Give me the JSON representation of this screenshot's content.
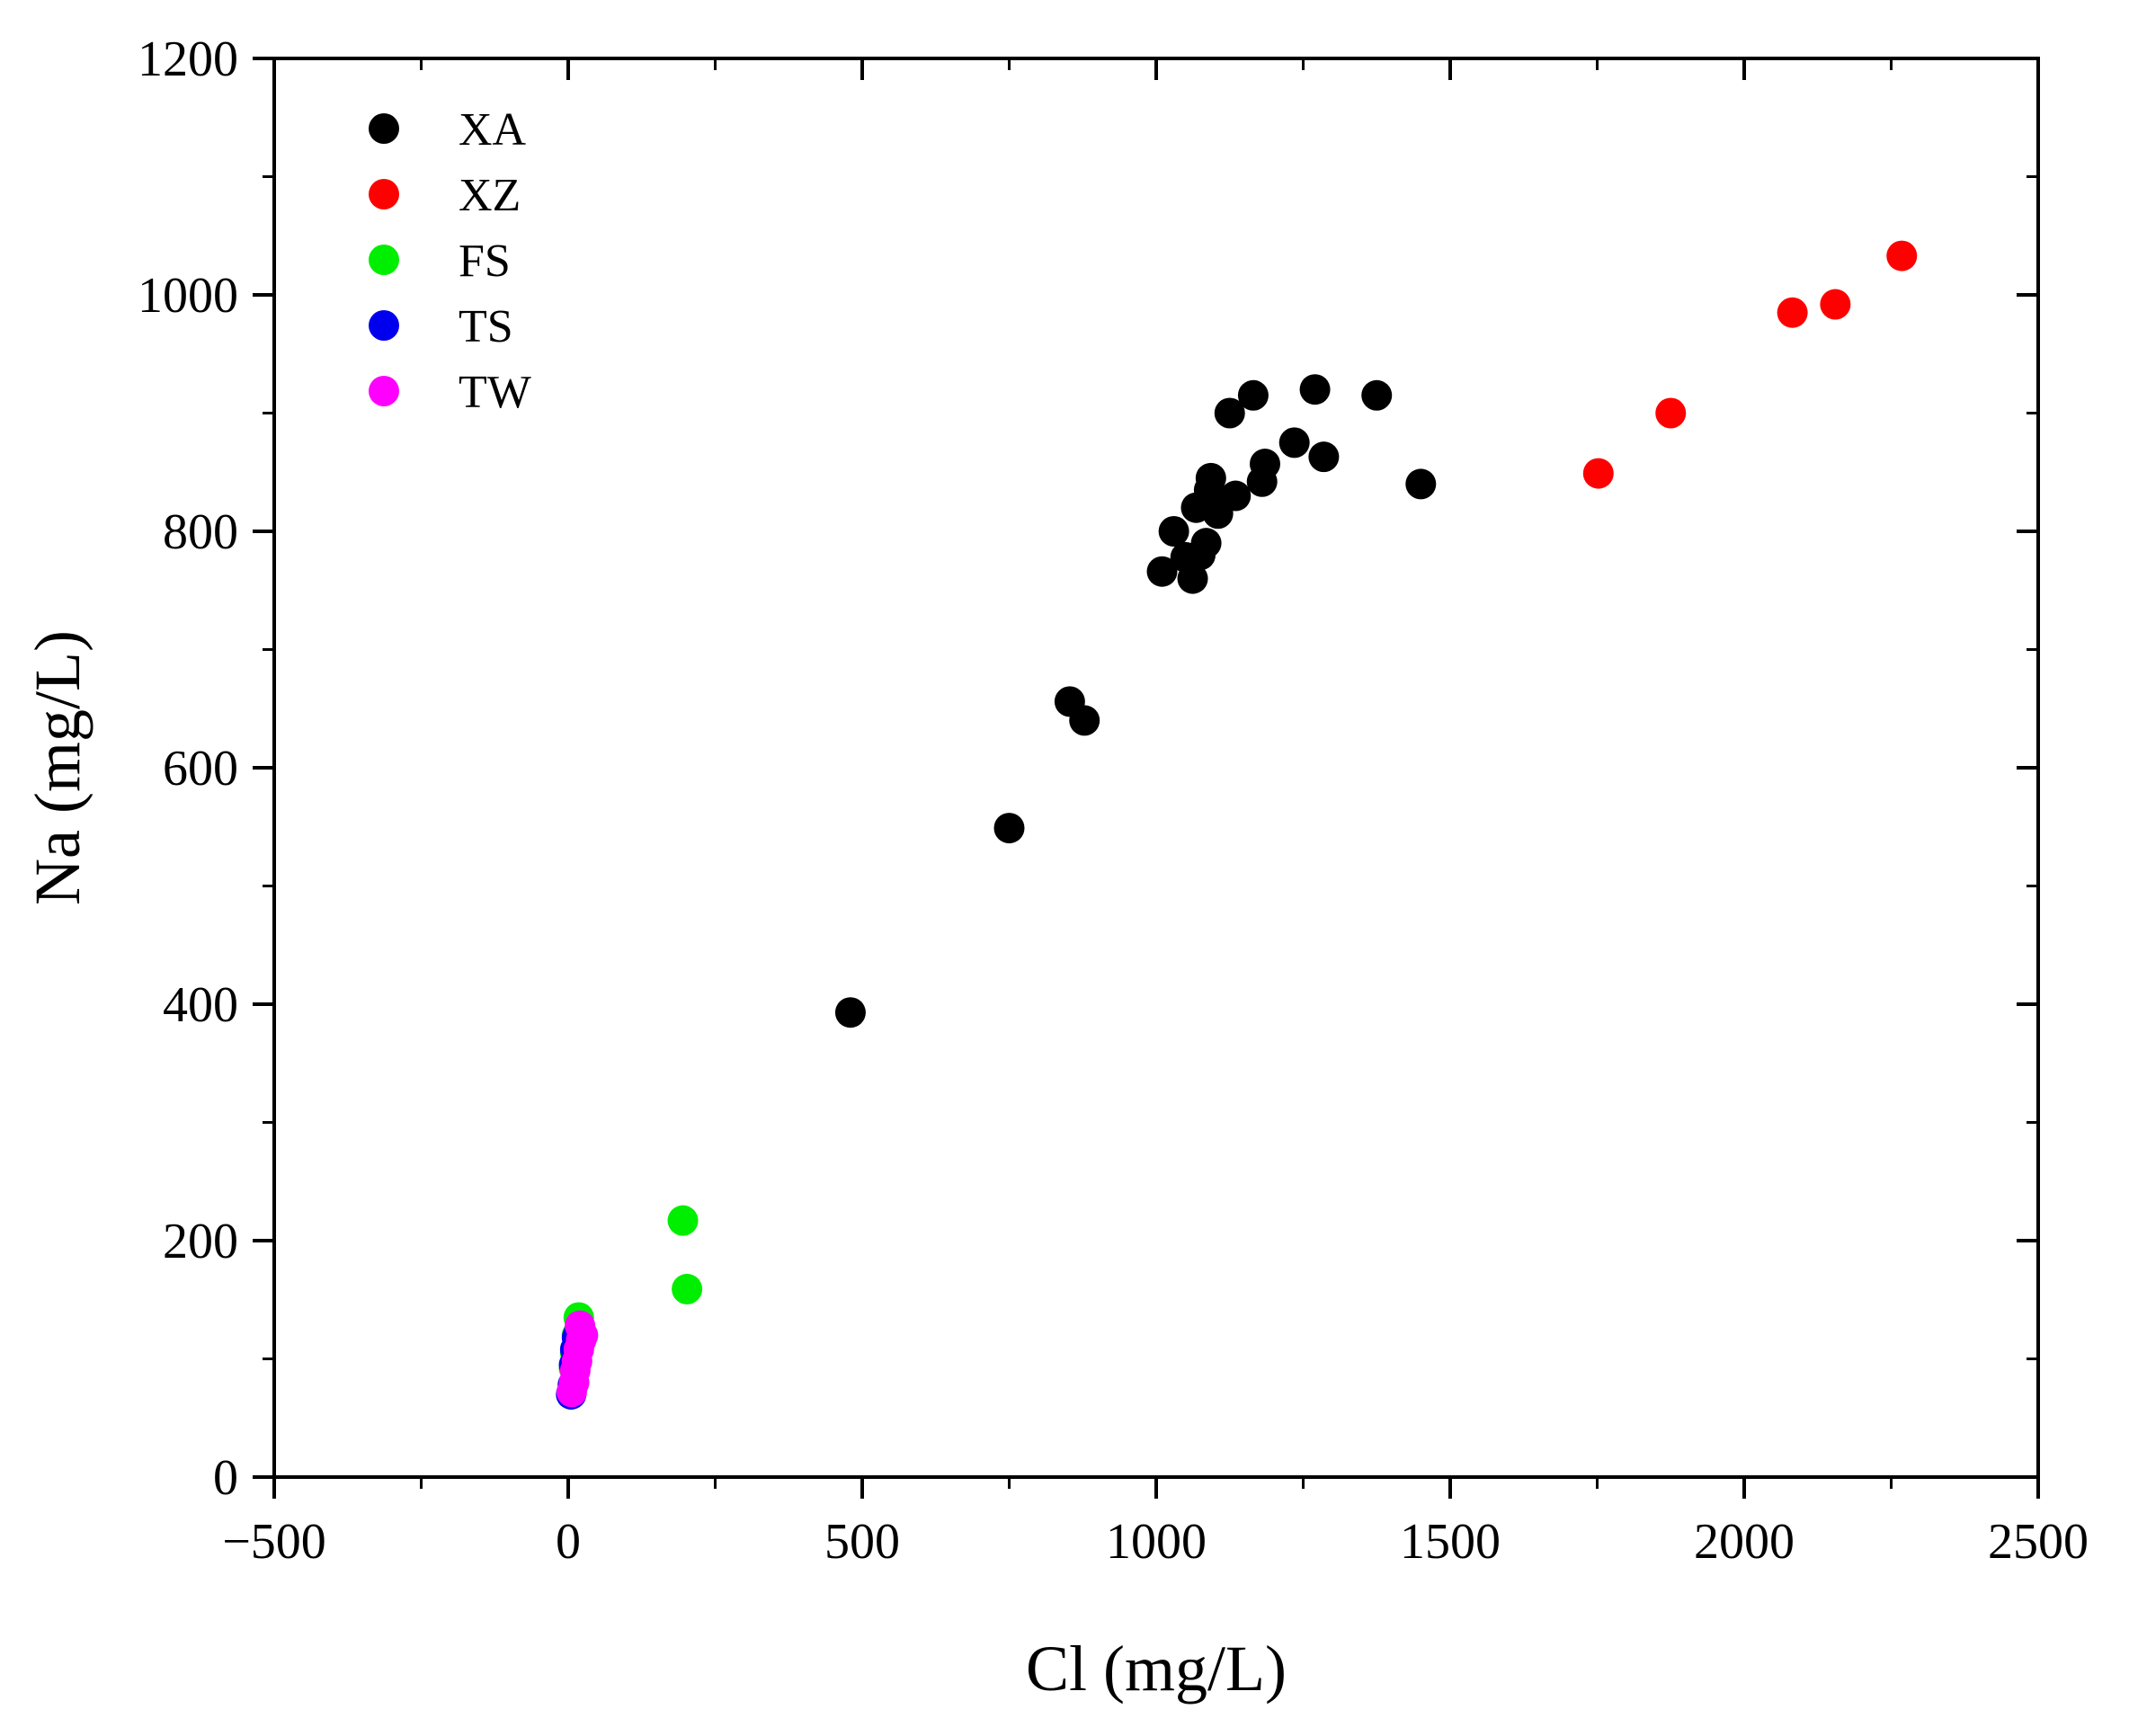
{
  "chart_data": {
    "type": "scatter",
    "title": "",
    "xlabel": "Cl (mg/L)",
    "ylabel": "Na (mg/L)",
    "xlim": [
      -500,
      2500
    ],
    "ylim": [
      0,
      1200
    ],
    "xticks": [
      -500,
      0,
      500,
      1000,
      1500,
      2000,
      2500
    ],
    "xtick_labels": [
      "−500",
      "0",
      "500",
      "1000",
      "1500",
      "2000",
      "2500"
    ],
    "yticks": [
      0,
      200,
      400,
      600,
      800,
      1000,
      1200
    ],
    "ytick_labels": [
      "0",
      "200",
      "400",
      "600",
      "800",
      "1000",
      "1200"
    ],
    "grid": false,
    "legend_position": "top-left",
    "series": [
      {
        "name": "XA",
        "color": "#000000",
        "points": [
          [
            480,
            393
          ],
          [
            750,
            549
          ],
          [
            853,
            656
          ],
          [
            878,
            640
          ],
          [
            1010,
            766
          ],
          [
            1030,
            800
          ],
          [
            1050,
            778
          ],
          [
            1062,
            760
          ],
          [
            1068,
            820
          ],
          [
            1075,
            780
          ],
          [
            1085,
            790
          ],
          [
            1090,
            835
          ],
          [
            1093,
            845
          ],
          [
            1105,
            815
          ],
          [
            1125,
            900
          ],
          [
            1135,
            830
          ],
          [
            1165,
            915
          ],
          [
            1180,
            842
          ],
          [
            1185,
            857
          ],
          [
            1235,
            875
          ],
          [
            1270,
            920
          ],
          [
            1285,
            863
          ],
          [
            1375,
            915
          ],
          [
            1450,
            840
          ]
        ]
      },
      {
        "name": "XZ",
        "color": "#ff0000",
        "points": [
          [
            1752,
            849
          ],
          [
            1875,
            900
          ],
          [
            2082,
            985
          ],
          [
            2155,
            992
          ],
          [
            2268,
            1033
          ]
        ]
      },
      {
        "name": "FS",
        "color": "#00ee00",
        "points": [
          [
            195,
            217
          ],
          [
            202,
            159
          ],
          [
            18,
            135
          ],
          [
            15,
            120
          ],
          [
            12,
            105
          ],
          [
            10,
            92
          ],
          [
            8,
            78
          ]
        ]
      },
      {
        "name": "TS",
        "color": "#0000ee",
        "points": [
          [
            5,
            70
          ],
          [
            8,
            78
          ],
          [
            10,
            95
          ],
          [
            12,
            108
          ],
          [
            15,
            118
          ],
          [
            18,
            122
          ]
        ]
      },
      {
        "name": "TW",
        "color": "#ff00ff",
        "points": [
          [
            6,
            72
          ],
          [
            10,
            80
          ],
          [
            12,
            90
          ],
          [
            15,
            98
          ],
          [
            18,
            108
          ],
          [
            22,
            116
          ],
          [
            25,
            120
          ],
          [
            20,
            128
          ]
        ]
      }
    ]
  }
}
